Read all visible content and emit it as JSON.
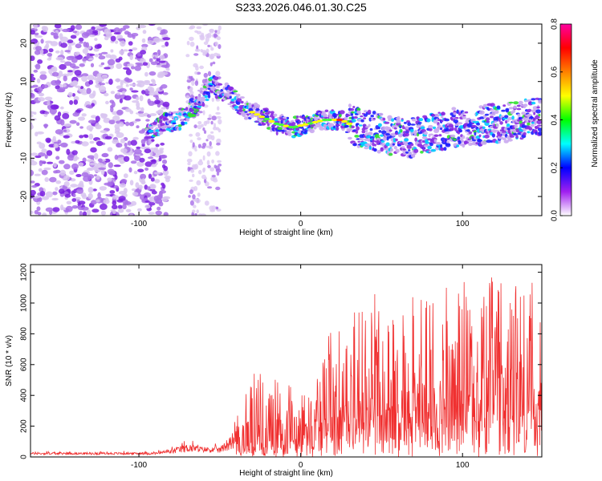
{
  "title": "S233.2026.046.01.30.C25",
  "chart_data": [
    {
      "type": "heatmap",
      "xlabel": "Height of straight line (km)",
      "ylabel": "Frequency (Hz)",
      "xlim": [
        -167,
        149
      ],
      "ylim": [
        -25,
        25
      ],
      "xticks": [
        -100,
        0,
        100
      ],
      "yticks": [
        -20,
        -10,
        0,
        10,
        20
      ],
      "colorbar": {
        "label": "Normalized spectral amplitude",
        "range": [
          0.0,
          0.8
        ],
        "ticks": [
          "0.0",
          "0.2",
          "0.4",
          "0.6",
          "0.8"
        ],
        "colors": [
          "#ffffff",
          "#a020f0",
          "#0000ff",
          "#00ffff",
          "#00ff00",
          "#ffff00",
          "#ff8000",
          "#ff0000",
          "#ff00a0"
        ]
      },
      "ridge": {
        "x": [
          -95,
          -85,
          -75,
          -65,
          -55,
          -45,
          -35,
          -25,
          -15,
          -5,
          5,
          15,
          25,
          35,
          45,
          55,
          65,
          75,
          85,
          95,
          105,
          115,
          125,
          135,
          145
        ],
        "freq": [
          -4,
          -1,
          0,
          4,
          9,
          7,
          3,
          1,
          -1,
          -2,
          -1,
          0,
          0,
          -2,
          -3,
          -4,
          -5,
          -4,
          -3,
          -2,
          -2,
          -1,
          -1,
          0,
          1
        ]
      }
    },
    {
      "type": "line",
      "xlabel": "Height of straight line (km)",
      "ylabel": "SNR (10 * v/v)",
      "xlim": [
        -167,
        149
      ],
      "ylim": [
        0,
        1250
      ],
      "xticks": [
        -100,
        0,
        100
      ],
      "yticks": [
        0,
        200,
        400,
        600,
        800,
        1000,
        1200
      ],
      "color": "#f03030",
      "envelope": {
        "x": [
          -167,
          -90,
          -80,
          -70,
          -60,
          -50,
          -40,
          -30,
          -20,
          -10,
          0,
          10,
          20,
          30,
          40,
          50,
          60,
          70,
          80,
          90,
          100,
          110,
          120,
          130,
          140,
          149
        ],
        "lo": [
          15,
          15,
          20,
          30,
          30,
          25,
          60,
          80,
          100,
          150,
          180,
          200,
          260,
          300,
          320,
          300,
          300,
          300,
          300,
          300,
          300,
          300,
          300,
          300,
          300,
          300
        ],
        "hi": [
          40,
          40,
          70,
          120,
          90,
          90,
          250,
          580,
          500,
          520,
          400,
          520,
          900,
          880,
          1090,
          1050,
          1000,
          1100,
          1060,
          1100,
          1150,
          1060,
          1200,
          1100,
          1150,
          1100
        ]
      }
    }
  ]
}
